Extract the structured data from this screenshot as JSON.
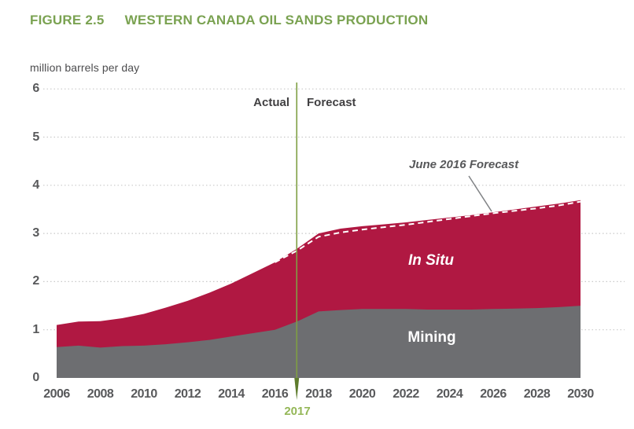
{
  "header": {
    "figure_label": "FIGURE 2.5",
    "title": "WESTERN CANADA OIL SANDS PRODUCTION"
  },
  "chart": {
    "unit_label": "million barrels per day",
    "actual_label": "Actual",
    "forecast_label": "Forecast",
    "divider_year": "2017",
    "in_situ_label": "In Situ",
    "mining_label": "Mining",
    "forecast_callout_label": "June 2016 Forecast"
  },
  "colors": {
    "title_green": "#7aa251",
    "in_situ_red": "#b01842",
    "mining_gray": "#6d6e71",
    "divider_line_green": "#7f9f43",
    "divider_arrow_green": "#5e7c2d",
    "year_label_green": "#94b757",
    "axis_text_gray": "#58595b",
    "gridline_gray": "#c9c9c9",
    "callout_gray": "#808285",
    "forecast_dash_white": "#ffffff"
  },
  "chart_data": {
    "type": "area",
    "stacked": true,
    "title": "WESTERN CANADA OIL SANDS PRODUCTION",
    "ylabel": "million barrels per day",
    "xlabel": "",
    "grid": "dotted-horizontal",
    "xlim": [
      2006,
      2030
    ],
    "ylim": [
      0,
      6
    ],
    "x_ticks": [
      2006,
      2008,
      2010,
      2012,
      2014,
      2016,
      2018,
      2020,
      2022,
      2024,
      2026,
      2028,
      2030
    ],
    "y_ticks": [
      0,
      1,
      2,
      3,
      4,
      5,
      6
    ],
    "x": [
      2006,
      2007,
      2008,
      2009,
      2010,
      2011,
      2012,
      2013,
      2014,
      2015,
      2016,
      2017,
      2018,
      2019,
      2020,
      2021,
      2022,
      2023,
      2024,
      2025,
      2026,
      2027,
      2028,
      2029,
      2030
    ],
    "series": [
      {
        "name": "Mining",
        "color": "#6d6e71",
        "values": [
          0.64,
          0.67,
          0.63,
          0.66,
          0.67,
          0.7,
          0.74,
          0.79,
          0.86,
          0.93,
          1.0,
          1.17,
          1.38,
          1.41,
          1.43,
          1.43,
          1.43,
          1.42,
          1.42,
          1.42,
          1.43,
          1.44,
          1.45,
          1.47,
          1.5
        ]
      },
      {
        "name": "In Situ",
        "color": "#b01842",
        "values": [
          0.46,
          0.5,
          0.55,
          0.58,
          0.66,
          0.76,
          0.86,
          0.98,
          1.1,
          1.25,
          1.4,
          1.51,
          1.62,
          1.69,
          1.72,
          1.76,
          1.8,
          1.86,
          1.91,
          1.96,
          2.01,
          2.06,
          2.11,
          2.15,
          2.19
        ]
      }
    ],
    "overlay_line": {
      "name": "June 2016 Forecast",
      "color": "#ffffff",
      "dashed": true,
      "x": [
        2016,
        2017,
        2018,
        2019,
        2020,
        2021,
        2022,
        2023,
        2024,
        2025,
        2026,
        2027,
        2028,
        2029,
        2030
      ],
      "values": [
        2.4,
        2.64,
        2.93,
        3.02,
        3.08,
        3.13,
        3.18,
        3.24,
        3.3,
        3.36,
        3.42,
        3.47,
        3.52,
        3.58,
        3.66
      ]
    },
    "divider": {
      "x": 2017,
      "label": "2017",
      "labels_left": "Actual",
      "labels_right": "Forecast"
    },
    "annotations": [
      {
        "text": "In Situ",
        "series": "In Situ"
      },
      {
        "text": "Mining",
        "series": "Mining"
      },
      {
        "text": "June 2016 Forecast",
        "points_to": "overlay_line"
      }
    ]
  }
}
